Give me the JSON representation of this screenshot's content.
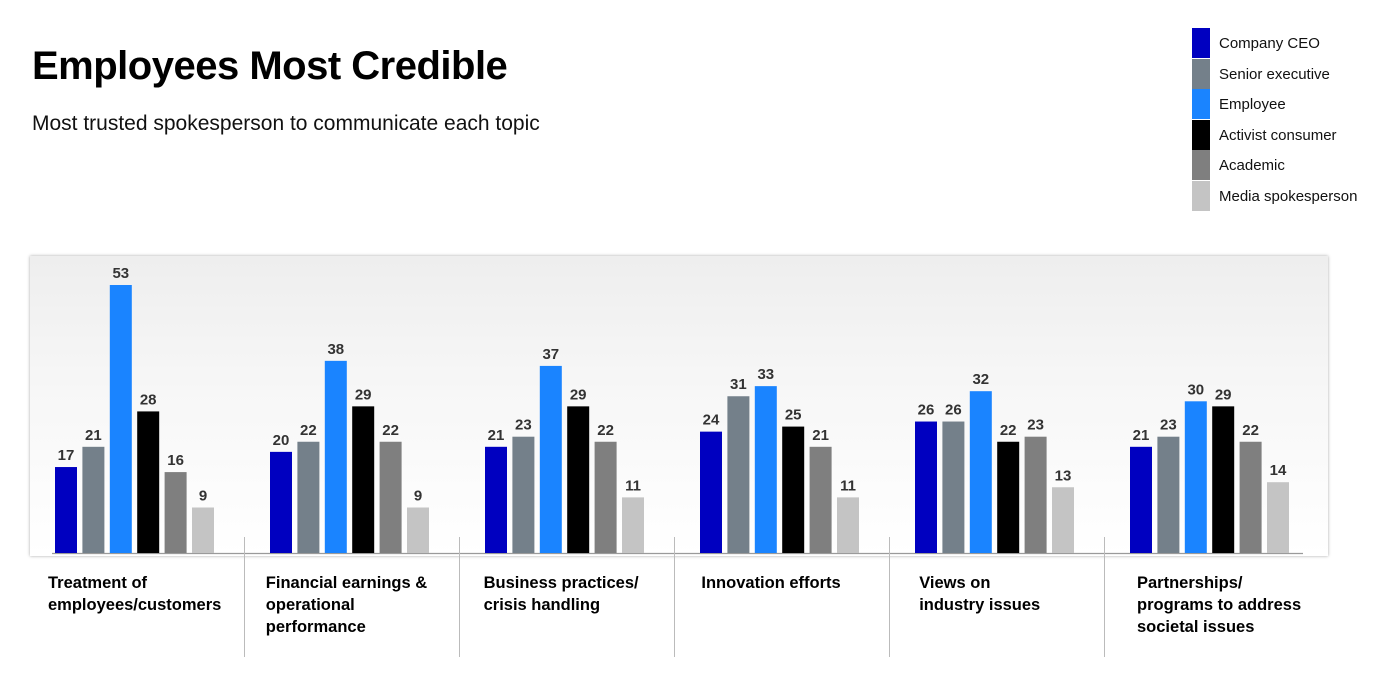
{
  "title": "Employees Most Credible",
  "subtitle": "Most trusted spokesperson to communicate each topic",
  "colors": {
    "company_ceo": "#0000c0",
    "senior_executive": "#74808a",
    "employee": "#1a84ff",
    "activist_consumer": "#000000",
    "academic": "#7f7f7f",
    "media_spokesperson": "#c4c4c4"
  },
  "legend": [
    {
      "label": "Company CEO",
      "color": "#0000c0"
    },
    {
      "label": "Senior executive",
      "color": "#74808a"
    },
    {
      "label": "Employee",
      "color": "#1a84ff"
    },
    {
      "label": "Activist consumer",
      "color": "#000000"
    },
    {
      "label": "Academic",
      "color": "#7f7f7f"
    },
    {
      "label": "Media spokesperson",
      "color": "#c4c4c4"
    }
  ],
  "chart_data": {
    "type": "bar",
    "title": "Employees Most Credible",
    "subtitle": "Most trusted spokesperson to communicate each topic",
    "categories": [
      [
        "Treatment of",
        "employees/customers"
      ],
      [
        "Financial earnings &",
        "operational",
        "performance"
      ],
      [
        "Business practices/",
        "crisis handling"
      ],
      [
        "Innovation efforts"
      ],
      [
        "Views on",
        "industry issues"
      ],
      [
        "Partnerships/",
        "programs to address",
        "societal issues"
      ]
    ],
    "series": [
      {
        "name": "Company CEO",
        "color": "#0000c0",
        "values": [
          17,
          20,
          21,
          24,
          26,
          21
        ]
      },
      {
        "name": "Senior executive",
        "color": "#74808a",
        "values": [
          21,
          22,
          23,
          31,
          26,
          23
        ]
      },
      {
        "name": "Employee",
        "color": "#1a84ff",
        "values": [
          53,
          38,
          37,
          33,
          32,
          30
        ]
      },
      {
        "name": "Activist consumer",
        "color": "#000000",
        "values": [
          28,
          29,
          29,
          25,
          22,
          29
        ]
      },
      {
        "name": "Academic",
        "color": "#7f7f7f",
        "values": [
          16,
          22,
          22,
          21,
          23,
          22
        ]
      },
      {
        "name": "Media spokesperson",
        "color": "#c4c4c4",
        "values": [
          9,
          9,
          11,
          11,
          13,
          14
        ]
      }
    ],
    "ylim": [
      0,
      53
    ],
    "grid": false,
    "legend_position": "top-right",
    "data_labels": true
  }
}
